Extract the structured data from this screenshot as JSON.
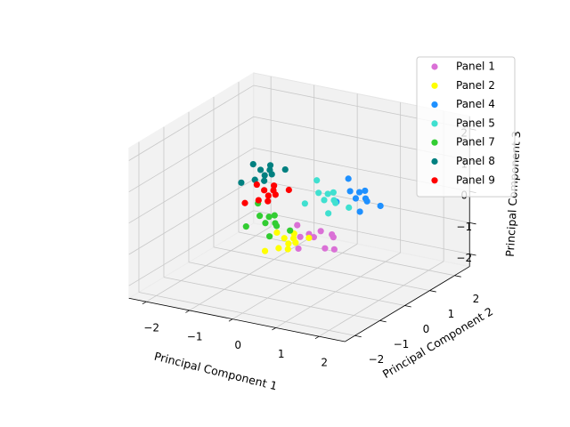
{
  "chart_data": {
    "type": "scatter3d",
    "xlabel": "Principal Component 1",
    "ylabel": "Principal Component 2",
    "zlabel": "Principal Component 3",
    "xlim": [
      -2.4,
      2.6
    ],
    "ylim": [
      -2.4,
      2.6
    ],
    "zlim": [
      -2.4,
      2.4
    ],
    "xticks": [
      {
        "value": -2,
        "label": "−2"
      },
      {
        "value": -1,
        "label": "−1"
      },
      0,
      1,
      2
    ],
    "yticks": [
      {
        "value": -2,
        "label": "−2"
      },
      {
        "value": -1,
        "label": "−1"
      },
      0,
      1,
      2
    ],
    "zticks": [
      {
        "value": -2,
        "label": "−2"
      },
      {
        "value": -1,
        "label": "−1"
      },
      0,
      1,
      2
    ],
    "grid": true,
    "legend": "upper right",
    "series": [
      {
        "name": "Panel 1",
        "color": "#da70d6",
        "x": [
          0.9,
          0.5,
          1.2,
          0.7,
          1.0,
          0.4,
          1.1,
          0.8,
          0.6,
          1.15
        ],
        "y": [
          -0.7,
          -0.2,
          -0.4,
          -0.9,
          -0.15,
          -0.5,
          -0.6,
          -0.25,
          -0.8,
          -0.35
        ],
        "z": [
          -0.35,
          -0.6,
          -0.8,
          -0.3,
          -0.5,
          -0.2,
          -0.7,
          -0.4,
          -0.75,
          -0.45
        ]
      },
      {
        "name": "Panel 2",
        "color": "#ffff00",
        "x": [
          0.65,
          0.1,
          0.3,
          0.6,
          -0.1,
          0.5,
          0.2,
          0.7,
          0,
          0.4
        ],
        "y": [
          -1.0,
          -0.5,
          -0.7,
          -1.2,
          -0.45,
          -0.8,
          -0.9,
          -0.55,
          -1.1,
          -0.65
        ],
        "z": [
          -0.45,
          -0.7,
          -0.9,
          -0.4,
          -0.6,
          -0.3,
          -0.8,
          -0.5,
          -0.85,
          -0.55
        ]
      },
      {
        "name": "Panel 4",
        "color": "#1e90ff",
        "x": [
          0.9,
          0.5,
          1.2,
          0.7,
          1.0,
          0.4,
          1.1,
          0.8,
          0.6,
          1.15
        ],
        "y": [
          1.35,
          0.9,
          1.45,
          1.1,
          1.2,
          1.55,
          0.8,
          1.3,
          1.5,
          1.0
        ],
        "z": [
          0.15,
          -0.1,
          -0.3,
          0.2,
          0,
          0.3,
          -0.2,
          0.1,
          -0.25,
          0.05
        ]
      },
      {
        "name": "Panel 5",
        "color": "#40e0d0",
        "x": [
          0.65,
          0.1,
          0.3,
          0.6,
          -0.1,
          0.5,
          0.2,
          0.7,
          0,
          0.4
        ],
        "y": [
          0.6,
          1.1,
          0.9,
          0.4,
          1.15,
          0.8,
          0.7,
          1.05,
          0.5,
          0.95
        ],
        "z": [
          0.05,
          -0.25,
          0.1,
          -0.2,
          0.3,
          0,
          0.2,
          -0.3,
          -0.1,
          0.15
        ]
      },
      {
        "name": "Panel 7",
        "color": "#32cd32",
        "x": [
          -0.5,
          -0.9,
          -0.2,
          -0.7,
          -0.4,
          -1.0,
          -0.3,
          -0.6,
          -0.8,
          -0.25
        ],
        "y": [
          0.15,
          -0.3,
          0.25,
          -0.1,
          0,
          0.35,
          -0.4,
          0.1,
          0.3,
          -0.2
        ],
        "z": [
          -0.45,
          -0.7,
          -0.9,
          -0.4,
          -0.6,
          -0.3,
          -0.8,
          -0.5,
          -0.85,
          -0.55
        ]
      },
      {
        "name": "Panel 8",
        "color": "#008080",
        "x": [
          -0.65,
          -1.2,
          -1.0,
          -0.7,
          -1.4,
          -0.8,
          -1.1,
          -0.6,
          -1.3,
          -0.9
        ],
        "y": [
          0.3,
          0.8,
          0.6,
          0.1,
          0.85,
          0.5,
          0.4,
          0.75,
          0.2,
          0.65
        ],
        "z": [
          0.75,
          0.5,
          0.3,
          0.8,
          0.6,
          0.9,
          0.4,
          0.7,
          0.35,
          0.65
        ]
      },
      {
        "name": "Panel 9",
        "color": "#ff0000",
        "x": [
          -0.7,
          -1.1,
          -0.4,
          -0.9,
          -0.6,
          -1.2,
          -0.5,
          -0.8,
          -1.0,
          -0.45
        ],
        "y": [
          0.45,
          0,
          0.55,
          0.2,
          0.3,
          0.65,
          -0.1,
          0.4,
          0.6,
          0.1
        ],
        "z": [
          0.15,
          -0.15,
          0.2,
          -0.1,
          0.4,
          0.1,
          0.3,
          -0.2,
          0,
          0.25
        ]
      }
    ]
  }
}
